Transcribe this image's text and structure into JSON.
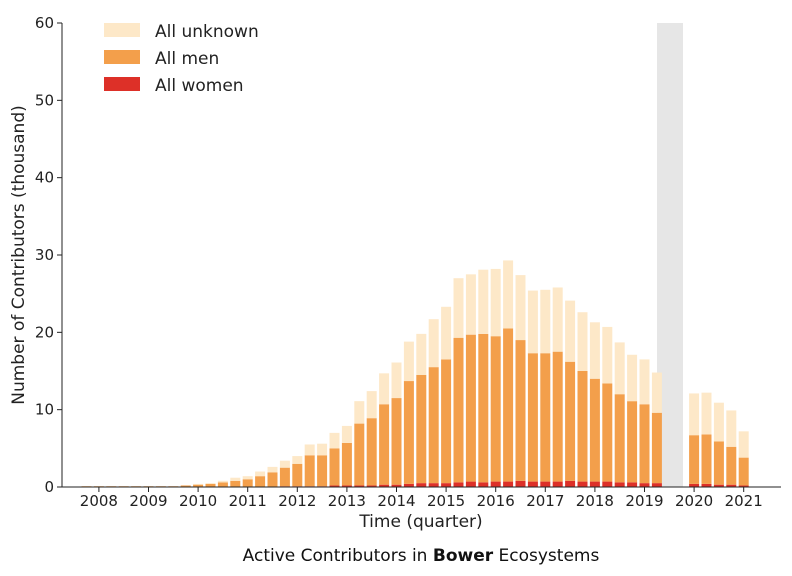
{
  "chart_data": {
    "type": "bar",
    "stacked": true,
    "xlabel": "Time (quarter)",
    "ylabel": "Number of Contributors (thousand)",
    "ylim": [
      0,
      60
    ],
    "yticks": [
      0,
      10,
      20,
      30,
      40,
      50,
      60
    ],
    "xticks": [
      "2008",
      "2009",
      "2010",
      "2011",
      "2012",
      "2013",
      "2014",
      "2015",
      "2016",
      "2017",
      "2018",
      "2019",
      "2020",
      "2021"
    ],
    "legend_position": "top-left",
    "grid": false,
    "shaded_region": {
      "color": "#e6e6e6",
      "note": "gap between 2019 Q2 and 2019 Q4"
    },
    "colors": {
      "unknown": "#fde8c8",
      "men": "#f39f4b",
      "women": "#dd3028"
    },
    "categories": [
      "2007Q4",
      "2008Q1",
      "2008Q2",
      "2008Q3",
      "2008Q4",
      "2009Q1",
      "2009Q2",
      "2009Q3",
      "2009Q4",
      "2010Q1",
      "2010Q2",
      "2010Q3",
      "2010Q4",
      "2011Q1",
      "2011Q2",
      "2011Q3",
      "2011Q4",
      "2012Q1",
      "2012Q2",
      "2012Q3",
      "2012Q4",
      "2013Q1",
      "2013Q2",
      "2013Q3",
      "2013Q4",
      "2014Q1",
      "2014Q2",
      "2014Q3",
      "2014Q4",
      "2015Q1",
      "2015Q2",
      "2015Q3",
      "2015Q4",
      "2016Q1",
      "2016Q2",
      "2016Q3",
      "2016Q4",
      "2017Q1",
      "2017Q2",
      "2017Q3",
      "2017Q4",
      "2018Q1",
      "2018Q2",
      "2018Q3",
      "2018Q4",
      "2019Q1",
      "2019Q2",
      "2019Q3",
      "2019Q4",
      "2020Q1",
      "2020Q2",
      "2020Q3",
      "2020Q4",
      "2021Q1"
    ],
    "series": [
      {
        "name": "All women",
        "color": "#dd3028",
        "values": [
          0,
          0,
          0,
          0,
          0,
          0,
          0,
          0,
          0,
          0,
          0,
          0,
          0,
          0,
          0,
          0,
          0.1,
          0.1,
          0.1,
          0.1,
          0.2,
          0.2,
          0.2,
          0.2,
          0.3,
          0.3,
          0.4,
          0.5,
          0.5,
          0.5,
          0.6,
          0.7,
          0.6,
          0.7,
          0.7,
          0.8,
          0.7,
          0.7,
          0.7,
          0.8,
          0.7,
          0.7,
          0.7,
          0.6,
          0.6,
          0.5,
          0.5,
          null,
          null,
          0.4,
          0.4,
          0.3,
          0.3,
          0.2
        ]
      },
      {
        "name": "All men",
        "color": "#f39f4b",
        "values": [
          0.1,
          0.1,
          0.1,
          0.1,
          0.1,
          0.1,
          0.1,
          0.1,
          0.2,
          0.3,
          0.4,
          0.6,
          0.8,
          1.0,
          1.4,
          1.9,
          2.4,
          2.9,
          4.0,
          4.0,
          4.8,
          5.5,
          8.0,
          8.7,
          10.4,
          11.2,
          13.3,
          14.0,
          15.0,
          16.0,
          18.7,
          19.0,
          19.2,
          18.8,
          19.8,
          18.2,
          16.6,
          16.6,
          16.8,
          15.4,
          14.3,
          13.3,
          12.7,
          11.4,
          10.5,
          10.2,
          9.1,
          null,
          null,
          6.3,
          6.4,
          5.6,
          4.9,
          3.6
        ]
      },
      {
        "name": "All unknown",
        "color": "#fde8c8",
        "values": [
          0,
          0,
          0,
          0,
          0,
          0,
          0,
          0,
          0,
          0.1,
          0.1,
          0.2,
          0.4,
          0.4,
          0.6,
          0.7,
          0.9,
          1.0,
          1.4,
          1.5,
          2.0,
          2.2,
          2.9,
          3.5,
          4.0,
          4.6,
          5.1,
          5.3,
          6.2,
          6.8,
          7.7,
          7.8,
          8.3,
          8.7,
          8.8,
          8.4,
          8.1,
          8.2,
          8.3,
          7.9,
          7.6,
          7.3,
          7.3,
          6.7,
          6.0,
          5.8,
          5.2,
          null,
          null,
          5.4,
          5.4,
          5.0,
          4.7,
          3.4
        ]
      }
    ]
  },
  "legend": {
    "unknown_label": "All unknown",
    "men_label": "All men",
    "women_label": "All women"
  },
  "caption": {
    "prefix": "Active Contributors in ",
    "bold": "Bower",
    "suffix": " Ecosystems"
  }
}
